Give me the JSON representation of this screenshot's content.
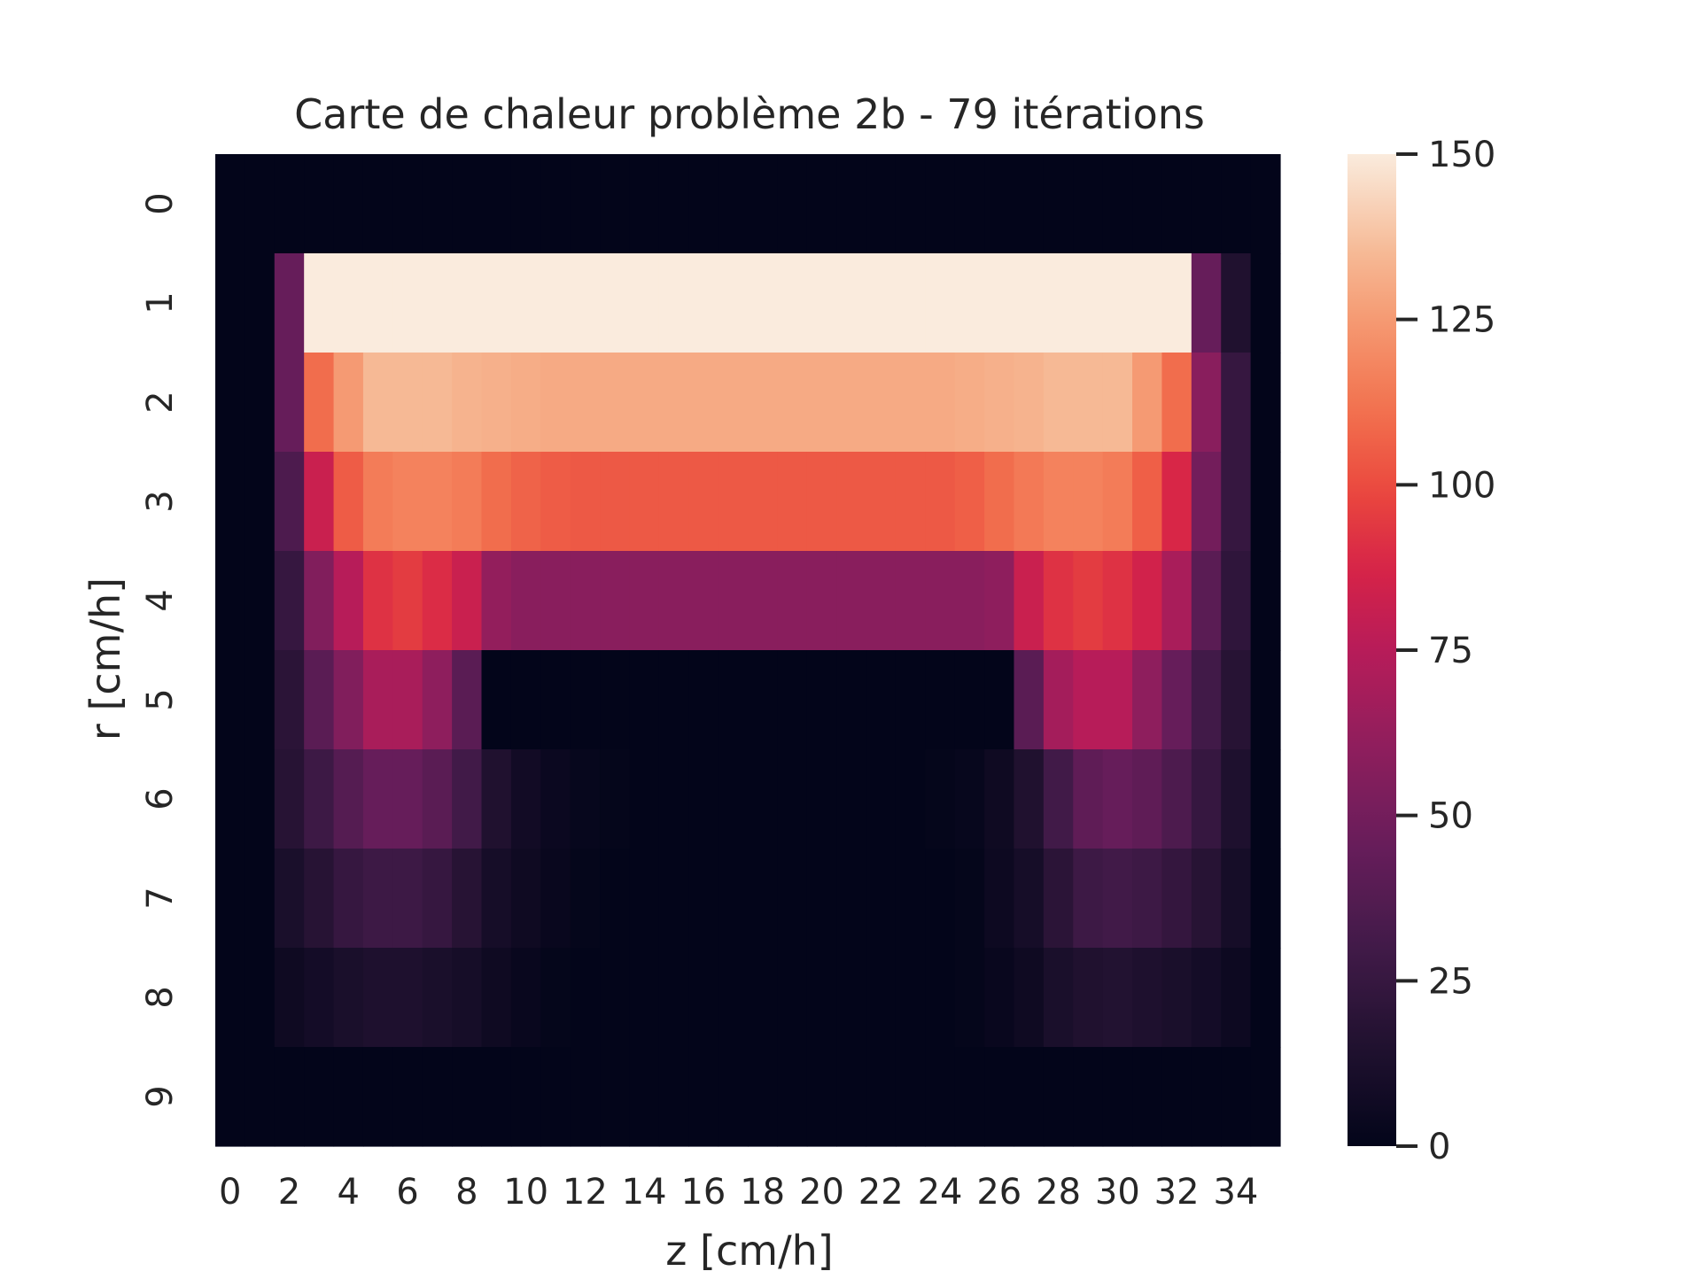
{
  "chart_data": {
    "type": "heatmap",
    "title": "Carte de chaleur problème 2b - 79 itérations",
    "xlabel": "z [cm/h]",
    "ylabel": "r [cm/h]",
    "x_tick_labels": [
      "0",
      "2",
      "4",
      "6",
      "8",
      "10",
      "12",
      "14",
      "16",
      "18",
      "20",
      "22",
      "24",
      "26",
      "28",
      "30",
      "32",
      "34"
    ],
    "x_tick_indices": [
      0,
      2,
      4,
      6,
      8,
      10,
      12,
      14,
      16,
      18,
      20,
      22,
      24,
      26,
      28,
      30,
      32,
      34
    ],
    "y_tick_labels": [
      "0",
      "1",
      "2",
      "3",
      "4",
      "5",
      "6",
      "7",
      "8",
      "9"
    ],
    "colorbar": {
      "ticks": [
        "0",
        "25",
        "50",
        "75",
        "100",
        "125",
        "150"
      ],
      "tick_values": [
        0,
        25,
        50,
        75,
        100,
        125,
        150
      ],
      "vmin": 0,
      "vmax": 150,
      "colormap": "rocket"
    },
    "n_cols": 36,
    "n_rows": 10,
    "values": [
      [
        0,
        0,
        0,
        0,
        0,
        0,
        0,
        0,
        0,
        0,
        0,
        0,
        0,
        0,
        0,
        0,
        0,
        0,
        0,
        0,
        0,
        0,
        0,
        0,
        0,
        0,
        0,
        0,
        0,
        0,
        0,
        0,
        0,
        0,
        0,
        0
      ],
      [
        0,
        0,
        45,
        150,
        150,
        150,
        150,
        150,
        150,
        150,
        150,
        150,
        150,
        150,
        150,
        150,
        150,
        150,
        150,
        150,
        150,
        150,
        150,
        150,
        150,
        150,
        150,
        150,
        150,
        150,
        150,
        150,
        150,
        45,
        15,
        0
      ],
      [
        0,
        0,
        45,
        110,
        125,
        135,
        135,
        135,
        133,
        132,
        131,
        130,
        130,
        130,
        130,
        130,
        130,
        130,
        130,
        130,
        130,
        130,
        130,
        130,
        130,
        131,
        132,
        133,
        135,
        135,
        135,
        125,
        110,
        58,
        25,
        0
      ],
      [
        0,
        0,
        35,
        82,
        105,
        115,
        117,
        117,
        115,
        110,
        107,
        105,
        104,
        104,
        104,
        104,
        104,
        104,
        104,
        104,
        104,
        104,
        104,
        104,
        104,
        106,
        110,
        114,
        117,
        117,
        115,
        106,
        88,
        50,
        25,
        0
      ],
      [
        0,
        0,
        25,
        55,
        75,
        92,
        95,
        90,
        82,
        62,
        58,
        58,
        58,
        58,
        58,
        58,
        58,
        58,
        58,
        58,
        58,
        58,
        58,
        58,
        58,
        58,
        60,
        82,
        92,
        95,
        92,
        85,
        70,
        40,
        22,
        0
      ],
      [
        0,
        0,
        20,
        40,
        55,
        70,
        70,
        60,
        40,
        0,
        0,
        0,
        0,
        0,
        0,
        0,
        0,
        0,
        0,
        0,
        0,
        0,
        0,
        0,
        0,
        0,
        0,
        40,
        68,
        75,
        75,
        60,
        45,
        30,
        18,
        0
      ],
      [
        0,
        0,
        18,
        28,
        38,
        45,
        45,
        40,
        30,
        15,
        8,
        4,
        2,
        1,
        0,
        0,
        0,
        0,
        0,
        0,
        0,
        0,
        0,
        0,
        1,
        2,
        6,
        15,
        30,
        42,
        45,
        42,
        35,
        25,
        14,
        0
      ],
      [
        0,
        0,
        12,
        18,
        25,
        28,
        28,
        25,
        18,
        10,
        6,
        3,
        1,
        0,
        0,
        0,
        0,
        0,
        0,
        0,
        0,
        0,
        0,
        0,
        0,
        1,
        5,
        10,
        20,
        28,
        30,
        28,
        24,
        18,
        10,
        0
      ],
      [
        0,
        0,
        6,
        9,
        12,
        14,
        14,
        12,
        10,
        6,
        3,
        1,
        0,
        0,
        0,
        0,
        0,
        0,
        0,
        0,
        0,
        0,
        0,
        0,
        0,
        1,
        3,
        6,
        12,
        15,
        16,
        14,
        12,
        9,
        5,
        0
      ],
      [
        0,
        0,
        0,
        0,
        0,
        0,
        0,
        0,
        0,
        0,
        0,
        0,
        0,
        0,
        0,
        0,
        0,
        0,
        0,
        0,
        0,
        0,
        0,
        0,
        0,
        0,
        0,
        0,
        0,
        0,
        0,
        0,
        0,
        0,
        0,
        0
      ]
    ]
  }
}
